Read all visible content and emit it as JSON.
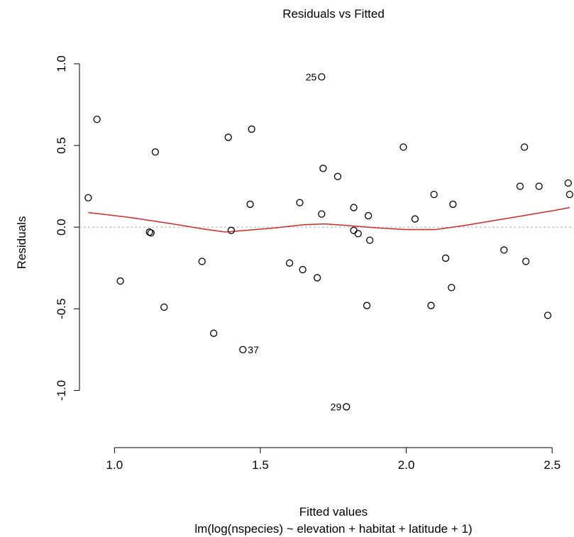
{
  "chart_data": {
    "type": "scatter",
    "title": "Residuals vs Fitted",
    "xlabel": "Fitted values",
    "xlabel_sub": "lm(log(nspecies) ~ elevation + habitat + latitude + 1)",
    "ylabel": "Residuals",
    "xlim": [
      0.88,
      2.57
    ],
    "ylim": [
      -1.35,
      1.23
    ],
    "x_ticks": [
      1.0,
      1.5,
      2.0,
      2.5
    ],
    "x_tick_labels": [
      "1.0",
      "1.5",
      "2.0",
      "2.5"
    ],
    "y_ticks": [
      -1.0,
      -0.5,
      0.0,
      0.5,
      1.0
    ],
    "y_tick_labels": [
      "-1.0",
      "-0.5",
      "0.0",
      "0.5",
      "1.0"
    ],
    "reference_line_y": 0.0,
    "grid": false,
    "colors": {
      "points": "#000000",
      "smooth": "#d62728",
      "reference": "#aaaaaa"
    },
    "points": [
      {
        "x": 0.91,
        "y": 0.18
      },
      {
        "x": 0.94,
        "y": 0.66
      },
      {
        "x": 1.02,
        "y": -0.33
      },
      {
        "x": 1.12,
        "y": -0.03
      },
      {
        "x": 1.125,
        "y": -0.035
      },
      {
        "x": 1.14,
        "y": 0.46
      },
      {
        "x": 1.17,
        "y": -0.49
      },
      {
        "x": 1.3,
        "y": -0.21
      },
      {
        "x": 1.34,
        "y": -0.65
      },
      {
        "x": 1.39,
        "y": 0.55
      },
      {
        "x": 1.4,
        "y": -0.02
      },
      {
        "x": 1.44,
        "y": -0.75,
        "label": "37"
      },
      {
        "x": 1.465,
        "y": 0.14
      },
      {
        "x": 1.47,
        "y": 0.6
      },
      {
        "x": 1.6,
        "y": -0.22
      },
      {
        "x": 1.635,
        "y": 0.15
      },
      {
        "x": 1.645,
        "y": -0.26
      },
      {
        "x": 1.695,
        "y": -0.31
      },
      {
        "x": 1.71,
        "y": 0.92,
        "label": "25"
      },
      {
        "x": 1.71,
        "y": 0.08
      },
      {
        "x": 1.715,
        "y": 0.36
      },
      {
        "x": 1.765,
        "y": 0.31
      },
      {
        "x": 1.795,
        "y": -1.1,
        "label": "29"
      },
      {
        "x": 1.82,
        "y": 0.12
      },
      {
        "x": 1.82,
        "y": -0.02
      },
      {
        "x": 1.835,
        "y": -0.04
      },
      {
        "x": 1.865,
        "y": -0.48
      },
      {
        "x": 1.87,
        "y": 0.07
      },
      {
        "x": 1.875,
        "y": -0.08
      },
      {
        "x": 1.99,
        "y": 0.49
      },
      {
        "x": 2.03,
        "y": 0.05
      },
      {
        "x": 2.085,
        "y": -0.48
      },
      {
        "x": 2.095,
        "y": 0.2
      },
      {
        "x": 2.135,
        "y": -0.19
      },
      {
        "x": 2.155,
        "y": -0.37
      },
      {
        "x": 2.16,
        "y": 0.14
      },
      {
        "x": 2.335,
        "y": -0.14
      },
      {
        "x": 2.39,
        "y": 0.25
      },
      {
        "x": 2.405,
        "y": 0.49
      },
      {
        "x": 2.41,
        "y": -0.21
      },
      {
        "x": 2.455,
        "y": 0.25
      },
      {
        "x": 2.485,
        "y": -0.54
      },
      {
        "x": 2.555,
        "y": 0.27
      },
      {
        "x": 2.56,
        "y": 0.2
      }
    ],
    "smooth_line": [
      {
        "x": 0.91,
        "y": 0.09
      },
      {
        "x": 1.05,
        "y": 0.06
      },
      {
        "x": 1.2,
        "y": 0.02
      },
      {
        "x": 1.3,
        "y": -0.01
      },
      {
        "x": 1.38,
        "y": -0.03
      },
      {
        "x": 1.45,
        "y": -0.02
      },
      {
        "x": 1.55,
        "y": -0.005
      },
      {
        "x": 1.65,
        "y": 0.015
      },
      {
        "x": 1.72,
        "y": 0.02
      },
      {
        "x": 1.8,
        "y": 0.01
      },
      {
        "x": 1.9,
        "y": -0.005
      },
      {
        "x": 2.0,
        "y": -0.015
      },
      {
        "x": 2.1,
        "y": -0.015
      },
      {
        "x": 2.2,
        "y": 0.01
      },
      {
        "x": 2.3,
        "y": 0.04
      },
      {
        "x": 2.4,
        "y": 0.07
      },
      {
        "x": 2.5,
        "y": 0.1
      },
      {
        "x": 2.56,
        "y": 0.12
      }
    ]
  }
}
